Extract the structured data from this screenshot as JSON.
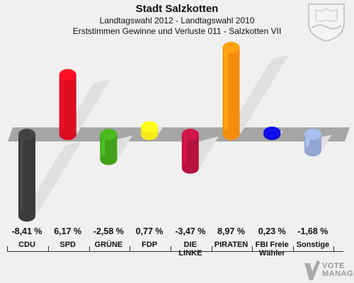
{
  "header": {
    "title": "Stadt Salzkotten",
    "subtitle": "Landtagswahl 2012 - Landtagswahl 2010",
    "subtitle2": "Erststimmen Gewinne und Verluste 011 - Salzkotten VII"
  },
  "logo": {
    "line1": "VOTE",
    "line2": "MANAGER"
  },
  "chart_data": {
    "type": "bar",
    "title": "Stadt Salzkotten",
    "categories": [
      "CDU",
      "SPD",
      "GRÜNE",
      "FDP",
      "DIE LINKE",
      "PIRATEN",
      "FBI Freie Wähler",
      "Sonstige"
    ],
    "values": [
      -8.41,
      6.17,
      -2.58,
      0.77,
      -3.47,
      8.97,
      0.23,
      -1.68
    ],
    "value_labels": [
      "-8,41 %",
      "6,17 %",
      "-2,58 %",
      "0,77 %",
      "-3,47 %",
      "8,97 %",
      "0,23 %",
      "-1,68 %"
    ],
    "colors": [
      "#3a3a3a",
      "#dd0d22",
      "#41a21a",
      "#f7e91a",
      "#b6123f",
      "#f48d0c",
      "#0c0ccc",
      "#93a5d2"
    ],
    "ylabel": "",
    "xlabel": "",
    "grid": false
  }
}
